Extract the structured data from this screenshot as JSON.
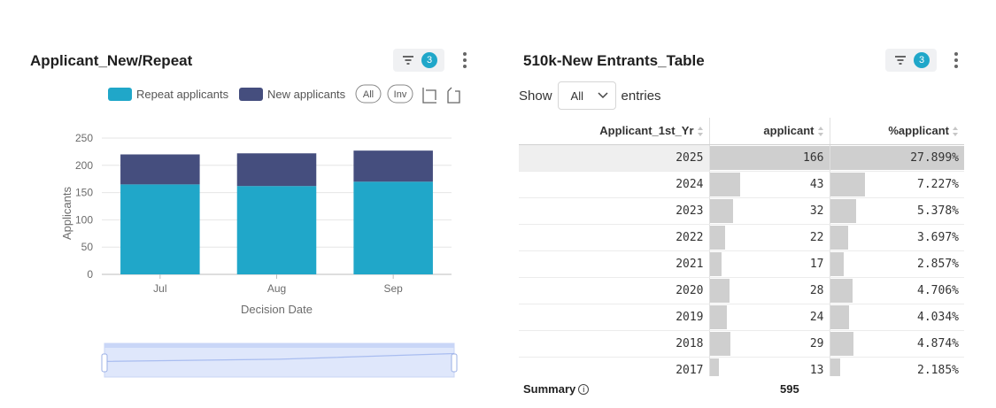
{
  "left": {
    "title": "Applicant_New/Repeat",
    "filter_count": "3",
    "legend": [
      {
        "label": "Repeat applicants",
        "color": "#20a7c9"
      },
      {
        "label": "New applicants",
        "color": "#454e7e"
      }
    ],
    "toolbar": {
      "all_label": "All",
      "inv_label": "Inv",
      "select_icon": "box-select-icon",
      "clear_icon": "clear-selection-icon"
    }
  },
  "chart_data": {
    "type": "bar",
    "stacked": true,
    "categories": [
      "Jul",
      "Aug",
      "Sep"
    ],
    "series": [
      {
        "name": "Repeat applicants",
        "values": [
          165,
          162,
          170
        ],
        "color": "#20a7c9"
      },
      {
        "name": "New applicants",
        "values": [
          55,
          60,
          57
        ],
        "color": "#454e7e"
      }
    ],
    "xlabel": "Decision Date",
    "ylabel": "Applicants",
    "ylim": [
      0,
      250
    ],
    "yticks": [
      "0",
      "50",
      "100",
      "150",
      "200",
      "250"
    ],
    "grid": true,
    "legend_position": "top-center",
    "data_zoom": {
      "range": [
        0,
        1
      ]
    }
  },
  "right": {
    "title": "510k-New Entrants_Table",
    "filter_count": "3",
    "show_label": "Show",
    "entries_label": "entries",
    "length_value": "All",
    "columns": [
      "Applicant_1st_Yr",
      "applicant",
      "%applicant"
    ],
    "rows": [
      {
        "year": "2025",
        "applicant": "166",
        "pct": "27.899%",
        "applicant_n": 166,
        "pct_n": 27.899
      },
      {
        "year": "2024",
        "applicant": "43",
        "pct": "7.227%",
        "applicant_n": 43,
        "pct_n": 7.227
      },
      {
        "year": "2023",
        "applicant": "32",
        "pct": "5.378%",
        "applicant_n": 32,
        "pct_n": 5.378
      },
      {
        "year": "2022",
        "applicant": "22",
        "pct": "3.697%",
        "applicant_n": 22,
        "pct_n": 3.697
      },
      {
        "year": "2021",
        "applicant": "17",
        "pct": "2.857%",
        "applicant_n": 17,
        "pct_n": 2.857
      },
      {
        "year": "2020",
        "applicant": "28",
        "pct": "4.706%",
        "applicant_n": 28,
        "pct_n": 4.706
      },
      {
        "year": "2019",
        "applicant": "24",
        "pct": "4.034%",
        "applicant_n": 24,
        "pct_n": 4.034
      },
      {
        "year": "2018",
        "applicant": "29",
        "pct": "4.874%",
        "applicant_n": 29,
        "pct_n": 4.874
      },
      {
        "year": "2017",
        "applicant": "13",
        "pct": "2.185%",
        "applicant_n": 13,
        "pct_n": 2.185
      }
    ],
    "summary_label": "Summary",
    "summary_total": "595"
  }
}
